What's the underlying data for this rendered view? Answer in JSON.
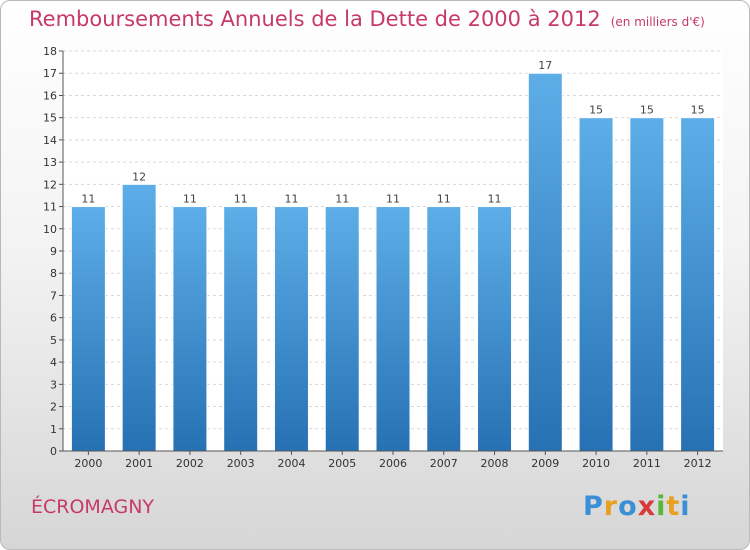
{
  "title": "Remboursements Annuels de la Dette de 2000 à 2012",
  "unit": "(en milliers d'€)",
  "commune": "ÉCROMAGNY",
  "logo": {
    "letters": [
      "P",
      "r",
      "o",
      "x",
      "i",
      "t",
      "i"
    ],
    "colors": [
      "#3a8fd6",
      "#e8a020",
      "#3a8fd6",
      "#d63a3a",
      "#58b838",
      "#e8a020",
      "#3a8fd6"
    ]
  },
  "chart_data": {
    "type": "bar",
    "categories": [
      "2000",
      "2001",
      "2002",
      "2003",
      "2004",
      "2005",
      "2006",
      "2007",
      "2008",
      "2009",
      "2010",
      "2011",
      "2012"
    ],
    "values": [
      11,
      12,
      11,
      11,
      11,
      11,
      11,
      11,
      11,
      17,
      15,
      15,
      15
    ],
    "title": "Remboursements Annuels de la Dette de 2000 à 2012",
    "ylim": [
      0,
      18
    ],
    "yticks": [
      0,
      1,
      2,
      3,
      4,
      5,
      6,
      7,
      8,
      9,
      10,
      11,
      12,
      13,
      14,
      15,
      16,
      17,
      18
    ],
    "grid": true,
    "bar_color": "#3b8fd4"
  }
}
